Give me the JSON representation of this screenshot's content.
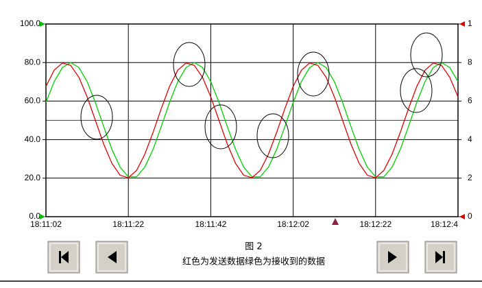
{
  "chart_data": {
    "type": "line",
    "caption": "图 2",
    "caption_text": "红色为发送数据绿色为接收到的数据",
    "x": [
      65462,
      65464,
      65466,
      65468,
      65470,
      65472,
      65474,
      65476,
      65478,
      65480,
      65482,
      65484,
      65486,
      65488,
      65490,
      65492,
      65494,
      65496,
      65498,
      65500,
      65502,
      65504,
      65506,
      65508,
      65510,
      65512,
      65514,
      65516,
      65518,
      65520,
      65522,
      65524,
      65526,
      65528,
      65530,
      65532,
      65534,
      65536,
      65538,
      65540,
      65542,
      65544,
      65546,
      65548,
      65550,
      65552,
      65554,
      65556,
      65558,
      65560,
      65562
    ],
    "series": [
      {
        "name": "红色为发送数据",
        "color": "#e00000",
        "values": [
          67.6,
          76.0,
          79.8,
          78.5,
          72.3,
          62.2,
          50.0,
          37.8,
          27.7,
          21.5,
          20.2,
          24.0,
          32.4,
          43.8,
          56.2,
          67.6,
          76.0,
          79.8,
          78.5,
          72.3,
          62.2,
          50.0,
          37.8,
          27.7,
          21.5,
          20.2,
          24.0,
          32.4,
          43.8,
          56.2,
          67.6,
          76.0,
          79.8,
          78.5,
          72.3,
          62.2,
          50.0,
          37.8,
          27.7,
          21.5,
          20.2,
          24.0,
          32.4,
          43.8,
          56.2,
          67.6,
          76.0,
          79.8,
          78.5,
          72.3,
          62.2
        ]
      },
      {
        "name": "绿色为接收到的数据",
        "color": "#00d000",
        "values": [
          59.3,
          70.1,
          77.4,
          80.0,
          77.4,
          70.1,
          59.3,
          46.9,
          35.0,
          25.7,
          20.7,
          20.7,
          25.7,
          35.0,
          46.9,
          59.3,
          70.1,
          77.4,
          80.0,
          77.4,
          70.1,
          59.3,
          46.9,
          35.0,
          25.7,
          20.7,
          20.7,
          25.7,
          35.0,
          46.9,
          59.3,
          70.1,
          77.4,
          80.0,
          77.4,
          70.1,
          59.3,
          46.9,
          35.0,
          25.7,
          20.7,
          20.7,
          25.7,
          35.0,
          46.9,
          59.3,
          70.1,
          77.4,
          80.0,
          77.4,
          70.1
        ]
      }
    ],
    "hline": 50,
    "hline_color": "#3040d0",
    "xlim": [
      65462,
      65562
    ],
    "xticks": [
      {
        "value": 65462,
        "label": "18:11:02"
      },
      {
        "value": 65482,
        "label": "18:11:22"
      },
      {
        "value": 65502,
        "label": "18:11:42"
      },
      {
        "value": 65522,
        "label": "18:12:02"
      },
      {
        "value": 65542,
        "label": "18:12:22"
      },
      {
        "value": 65562,
        "label": "18:12:4"
      }
    ],
    "ylim": [
      0,
      100
    ],
    "yticks": [
      {
        "value": 0,
        "label": "0.0"
      },
      {
        "value": 20,
        "label": "20.0"
      },
      {
        "value": 40,
        "label": "40.0"
      },
      {
        "value": 60,
        "label": "60.0"
      },
      {
        "value": 80,
        "label": "80.0"
      },
      {
        "value": 100,
        "label": "100.0"
      }
    ],
    "y2lim": [
      0,
      10
    ],
    "y2ticks": [
      0,
      2,
      4,
      6,
      8,
      {
        "value": 10,
        "label": "1"
      }
    ],
    "grid": true
  }
}
